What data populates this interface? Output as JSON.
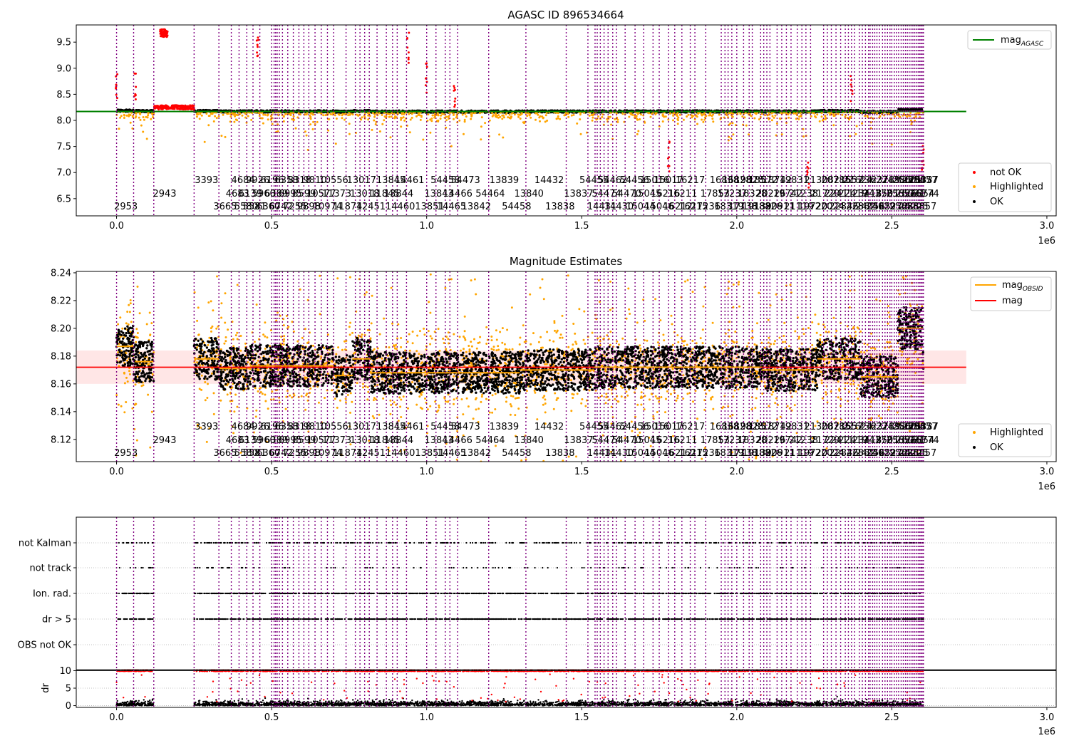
{
  "chart_data": [
    {
      "id": "panel1",
      "type": "scatter",
      "title": "AGASC ID 896534664",
      "xlim": [
        -130000,
        3030000
      ],
      "ylim": [
        6.17,
        9.83
      ],
      "x_offset_label": "1e6",
      "x_ticks": [
        0,
        500000,
        1000000,
        1500000,
        2000000,
        2500000,
        3000000
      ],
      "x_tick_labels": [
        "0.0",
        "0.5",
        "1.0",
        "1.5",
        "2.0",
        "2.5",
        "3.0"
      ],
      "y_ticks": [
        6.5,
        7.0,
        7.5,
        8.0,
        8.5,
        9.0,
        9.5
      ],
      "y_tick_labels": [
        "6.5",
        "7.0",
        "7.5",
        "8.0",
        "8.5",
        "9.0",
        "9.5"
      ],
      "hline": {
        "label_html": "mag<sub>AGASC</sub>",
        "base": "mag",
        "sub": "AGASC",
        "y": 8.17,
        "x_extent": [
          -130000,
          2740000
        ],
        "color": "#008000"
      },
      "legend_top": {
        "position": "top-right",
        "entries": [
          {
            "base": "mag",
            "sub": "AGASC",
            "color": "#008000",
            "kind": "line"
          }
        ]
      },
      "legend_bottom": {
        "position": "bottom-right",
        "entries": [
          {
            "label": "not OK",
            "color": "#ff0000",
            "kind": "dot"
          },
          {
            "label": "Highlighted",
            "color": "#ffa500",
            "kind": "dot"
          },
          {
            "label": "OK",
            "color": "#000000",
            "kind": "dot"
          }
        ]
      }
    },
    {
      "id": "panel2",
      "type": "scatter",
      "title": "Magnitude Estimates",
      "xlim": [
        -130000,
        3030000
      ],
      "ylim": [
        8.104,
        8.241
      ],
      "x_offset_label": "1e6",
      "x_ticks": [
        0,
        500000,
        1000000,
        1500000,
        2000000,
        2500000,
        3000000
      ],
      "x_tick_labels": [
        "0.0",
        "0.5",
        "1.0",
        "1.5",
        "2.0",
        "2.5",
        "3.0"
      ],
      "y_ticks": [
        8.12,
        8.14,
        8.16,
        8.18,
        8.2,
        8.22,
        8.24
      ],
      "y_tick_labels": [
        "8.12",
        "8.14",
        "8.16",
        "8.18",
        "8.20",
        "8.22",
        "8.24"
      ],
      "mag_line": {
        "y": 8.172,
        "band": [
          8.16,
          8.184
        ],
        "color": "#ff0000"
      },
      "legend_top": {
        "position": "top-right",
        "entries": [
          {
            "base": "mag",
            "sub": "OBSID",
            "color": "#ffa500",
            "kind": "line"
          },
          {
            "base": "mag",
            "sub": "",
            "color": "#ff0000",
            "kind": "line"
          }
        ]
      },
      "legend_bottom": {
        "position": "bottom-right",
        "entries": [
          {
            "label": "Highlighted",
            "color": "#ffa500",
            "kind": "dot"
          },
          {
            "label": "OK",
            "color": "#000000",
            "kind": "dot"
          }
        ]
      },
      "obsid_mag_segments": [
        {
          "x0": 0,
          "x1": 55000,
          "y": 8.187
        },
        {
          "x0": 60000,
          "x1": 120000,
          "y": 8.176
        },
        {
          "x0": 250000,
          "x1": 330000,
          "y": 8.178
        },
        {
          "x0": 330000,
          "x1": 430000,
          "y": 8.171
        },
        {
          "x0": 430000,
          "x1": 700000,
          "y": 8.173
        },
        {
          "x0": 700000,
          "x1": 760000,
          "y": 8.166
        },
        {
          "x0": 760000,
          "x1": 820000,
          "y": 8.178
        },
        {
          "x0": 820000,
          "x1": 1300000,
          "y": 8.168
        },
        {
          "x0": 1300000,
          "x1": 1540000,
          "y": 8.17
        },
        {
          "x0": 1540000,
          "x1": 2080000,
          "y": 8.172
        },
        {
          "x0": 2080000,
          "x1": 2260000,
          "y": 8.17
        },
        {
          "x0": 2260000,
          "x1": 2400000,
          "y": 8.178
        },
        {
          "x0": 2400000,
          "x1": 2520000,
          "y": 8.165
        },
        {
          "x0": 2520000,
          "x1": 2600000,
          "y": 8.2
        }
      ]
    },
    {
      "id": "panel3",
      "type": "scatter",
      "title": "",
      "xlim": [
        -130000,
        3030000
      ],
      "x_offset_label": "1e6",
      "x_ticks": [
        0,
        500000,
        1000000,
        1500000,
        2000000,
        2500000,
        3000000
      ],
      "x_tick_labels": [
        "0.0",
        "0.5",
        "1.0",
        "1.5",
        "2.0",
        "2.5",
        "3.0"
      ],
      "flags": [
        "not Kalman",
        "not track",
        "Ion. rad.",
        "dr > 5",
        "OBS not OK"
      ],
      "flag_density": [
        0.35,
        0.1,
        0.95,
        0.95,
        0.0
      ]
    },
    {
      "id": "panel4",
      "type": "scatter",
      "title": "",
      "ylabel": "dr",
      "xlim": [
        -130000,
        3030000
      ],
      "ylim": [
        -0.5,
        10.3
      ],
      "y_ticks": [
        0,
        5,
        10
      ],
      "y_tick_labels": [
        "0",
        "5",
        "10"
      ],
      "hline": {
        "y": 10,
        "color": "#000000"
      }
    }
  ],
  "obsid_boundaries": [
    0,
    55000,
    120000,
    250000,
    330000,
    370000,
    395000,
    420000,
    440000,
    462000,
    500000,
    508000,
    513000,
    518000,
    525000,
    535000,
    552000,
    570000,
    588000,
    604000,
    620000,
    640000,
    660000,
    680000,
    700000,
    740000,
    770000,
    785000,
    800000,
    815000,
    840000,
    870000,
    890000,
    905000,
    935000,
    1000000,
    1030000,
    1060000,
    1075000,
    1100000,
    1200000,
    1320000,
    1450000,
    1520000,
    1543000,
    1550000,
    1560000,
    1572000,
    1585000,
    1600000,
    1612000,
    1640000,
    1672000,
    1700000,
    1730000,
    1750000,
    1780000,
    1800000,
    1823000,
    1850000,
    1865000,
    1900000,
    1950000,
    1962000,
    1972000,
    1984000,
    2000000,
    2022000,
    2040000,
    2050000,
    2077000,
    2087000,
    2097000,
    2107000,
    2130000,
    2145000,
    2160000,
    2175000,
    2195000,
    2210000,
    2223000,
    2238000,
    2280000,
    2292000,
    2305000,
    2320000,
    2335000,
    2350000,
    2360000,
    2370000,
    2380000,
    2395000,
    2405000,
    2415000,
    2425000,
    2430000,
    2438000,
    2445000,
    2452000,
    2460000,
    2470000,
    2478000,
    2486000,
    2494000,
    2500000,
    2508000,
    2515000,
    2522000,
    2530000,
    2537000,
    2544000,
    2550000,
    2556000,
    2562000,
    2568000,
    2574000,
    2580000,
    2585000,
    2590000,
    2594000,
    2598000,
    2602000
  ],
  "obsid_labels": [
    {
      "text": "2953",
      "x": 30000,
      "row": 2
    },
    {
      "text": "2943",
      "x": 155000,
      "row": 1
    },
    {
      "text": "3393",
      "x": 290000,
      "row": 0
    },
    {
      "text": "3665",
      "x": 350000,
      "row": 2
    },
    {
      "text": "4683",
      "x": 390000,
      "row": 1
    },
    {
      "text": "4684",
      "x": 408000,
      "row": 0
    },
    {
      "text": "5580",
      "x": 418000,
      "row": 2
    },
    {
      "text": "6139",
      "x": 432000,
      "row": 1
    },
    {
      "text": "5581",
      "x": 445000,
      "row": 2
    },
    {
      "text": "9926",
      "x": 455000,
      "row": 0
    },
    {
      "text": "5960",
      "x": 475000,
      "row": 1
    },
    {
      "text": "6360",
      "x": 490000,
      "row": 2
    },
    {
      "text": "6196",
      "x": 502000,
      "row": 0
    },
    {
      "text": "6389",
      "x": 515000,
      "row": 1
    },
    {
      "text": "6742",
      "x": 530000,
      "row": 2
    },
    {
      "text": "6358",
      "x": 548000,
      "row": 0
    },
    {
      "text": "6995",
      "x": 560000,
      "row": 1
    },
    {
      "text": "7255",
      "x": 575000,
      "row": 2
    },
    {
      "text": "8318",
      "x": 590000,
      "row": 0
    },
    {
      "text": "8599",
      "x": 605000,
      "row": 1
    },
    {
      "text": "9898",
      "x": 620000,
      "row": 2
    },
    {
      "text": "9810",
      "x": 640000,
      "row": 0
    },
    {
      "text": "10577",
      "x": 660000,
      "row": 1
    },
    {
      "text": "10974",
      "x": 680000,
      "row": 2
    },
    {
      "text": "10556",
      "x": 700000,
      "row": 0
    },
    {
      "text": "11373",
      "x": 710000,
      "row": 1
    },
    {
      "text": "11874",
      "x": 745000,
      "row": 2
    },
    {
      "text": "13017",
      "x": 790000,
      "row": 0
    },
    {
      "text": "13018",
      "x": 800000,
      "row": 1
    },
    {
      "text": "12451",
      "x": 820000,
      "row": 2
    },
    {
      "text": "11845",
      "x": 865000,
      "row": 1
    },
    {
      "text": "13845",
      "x": 885000,
      "row": 0
    },
    {
      "text": "13844",
      "x": 910000,
      "row": 1
    },
    {
      "text": "14460",
      "x": 915000,
      "row": 2
    },
    {
      "text": "14461",
      "x": 945000,
      "row": 0
    },
    {
      "text": "13851",
      "x": 1010000,
      "row": 2
    },
    {
      "text": "13843",
      "x": 1040000,
      "row": 1
    },
    {
      "text": "54458",
      "x": 1060000,
      "row": 0
    },
    {
      "text": "14465",
      "x": 1080000,
      "row": 2
    },
    {
      "text": "14466",
      "x": 1100000,
      "row": 1
    },
    {
      "text": "54473",
      "x": 1125000,
      "row": 0
    },
    {
      "text": "13842",
      "x": 1160000,
      "row": 2
    },
    {
      "text": "54464",
      "x": 1205000,
      "row": 1
    },
    {
      "text": "13839",
      "x": 1250000,
      "row": 0
    },
    {
      "text": "54458",
      "x": 1290000,
      "row": 2
    },
    {
      "text": "13840",
      "x": 1330000,
      "row": 1
    },
    {
      "text": "14432",
      "x": 1395000,
      "row": 0
    },
    {
      "text": "13838",
      "x": 1430000,
      "row": 2
    },
    {
      "text": "13837",
      "x": 1490000,
      "row": 1
    },
    {
      "text": "54455",
      "x": 1540000,
      "row": 0
    },
    {
      "text": "14431",
      "x": 1565000,
      "row": 2
    },
    {
      "text": "54474",
      "x": 1580000,
      "row": 1
    },
    {
      "text": "54462",
      "x": 1600000,
      "row": 0
    },
    {
      "text": "14430",
      "x": 1620000,
      "row": 2
    },
    {
      "text": "54470",
      "x": 1645000,
      "row": 1
    },
    {
      "text": "54456",
      "x": 1670000,
      "row": 0
    },
    {
      "text": "15044",
      "x": 1690000,
      "row": 2
    },
    {
      "text": "15045",
      "x": 1710000,
      "row": 1
    },
    {
      "text": "15016",
      "x": 1735000,
      "row": 0
    },
    {
      "text": "15046",
      "x": 1750000,
      "row": 2
    },
    {
      "text": "16216",
      "x": 1770000,
      "row": 1
    },
    {
      "text": "15017",
      "x": 1780000,
      "row": 0
    },
    {
      "text": "16212",
      "x": 1810000,
      "row": 2
    },
    {
      "text": "16211",
      "x": 1825000,
      "row": 1
    },
    {
      "text": "16217",
      "x": 1850000,
      "row": 0
    },
    {
      "text": "16215",
      "x": 1860000,
      "row": 2
    },
    {
      "text": "17236",
      "x": 1900000,
      "row": 2
    },
    {
      "text": "17853",
      "x": 1930000,
      "row": 1
    },
    {
      "text": "16838",
      "x": 1960000,
      "row": 0
    },
    {
      "text": "18319",
      "x": 1975000,
      "row": 2
    },
    {
      "text": "17237",
      "x": 1985000,
      "row": 1
    },
    {
      "text": "16828",
      "x": 2000000,
      "row": 0
    },
    {
      "text": "17138",
      "x": 2020000,
      "row": 2
    },
    {
      "text": "19828",
      "x": 2040000,
      "row": 0
    },
    {
      "text": "18328",
      "x": 2050000,
      "row": 1
    },
    {
      "text": "19139",
      "x": 2065000,
      "row": 2
    },
    {
      "text": "18572",
      "x": 2085000,
      "row": 0
    },
    {
      "text": "18826",
      "x": 2100000,
      "row": 2
    },
    {
      "text": "20226",
      "x": 2110000,
      "row": 1
    },
    {
      "text": "18742",
      "x": 2130000,
      "row": 0
    },
    {
      "text": "20911",
      "x": 2140000,
      "row": 2
    },
    {
      "text": "19742",
      "x": 2165000,
      "row": 1
    },
    {
      "text": "19831",
      "x": 2185000,
      "row": 0
    },
    {
      "text": "21119",
      "x": 2200000,
      "row": 2
    },
    {
      "text": "21238",
      "x": 2215000,
      "row": 1
    },
    {
      "text": "19720",
      "x": 2245000,
      "row": 2
    },
    {
      "text": "21308",
      "x": 2265000,
      "row": 0
    },
    {
      "text": "21720",
      "x": 2285000,
      "row": 1
    },
    {
      "text": "22024",
      "x": 2300000,
      "row": 2
    },
    {
      "text": "20785",
      "x": 2320000,
      "row": 0
    },
    {
      "text": "22411",
      "x": 2330000,
      "row": 1
    },
    {
      "text": "22846",
      "x": 2345000,
      "row": 2
    },
    {
      "text": "21657",
      "x": 2360000,
      "row": 0
    },
    {
      "text": "22419",
      "x": 2375000,
      "row": 1
    },
    {
      "text": "21624",
      "x": 2390000,
      "row": 0
    },
    {
      "text": "22862",
      "x": 2400000,
      "row": 2
    },
    {
      "text": "23418",
      "x": 2420000,
      "row": 1
    },
    {
      "text": "24056",
      "x": 2430000,
      "row": 2
    },
    {
      "text": "23627",
      "x": 2440000,
      "row": 0
    },
    {
      "text": "24378",
      "x": 2455000,
      "row": 1
    },
    {
      "text": "24629",
      "x": 2465000,
      "row": 2
    },
    {
      "text": "23789",
      "x": 2480000,
      "row": 0
    },
    {
      "text": "25013",
      "x": 2495000,
      "row": 1
    },
    {
      "text": "25272",
      "x": 2505000,
      "row": 2
    },
    {
      "text": "24386",
      "x": 2515000,
      "row": 0
    },
    {
      "text": "25654",
      "x": 2530000,
      "row": 1
    },
    {
      "text": "25683",
      "x": 2540000,
      "row": 2
    },
    {
      "text": "25001",
      "x": 2550000,
      "row": 0
    },
    {
      "text": "26031",
      "x": 2560000,
      "row": 1
    },
    {
      "text": "26225",
      "x": 2570000,
      "row": 2
    },
    {
      "text": "25847",
      "x": 2580000,
      "row": 0
    },
    {
      "text": "26854",
      "x": 2590000,
      "row": 1
    },
    {
      "text": "26857",
      "x": 2597000,
      "row": 2
    },
    {
      "text": "25857",
      "x": 2600000,
      "row": 0
    },
    {
      "text": "26774",
      "x": 2605000,
      "row": 1
    },
    {
      "text": "26337",
      "x": 2603000,
      "row": 0
    }
  ],
  "colors": {
    "not_ok": "#ff0000",
    "highlighted": "#ffa500",
    "ok": "#000000",
    "boundary": "#800080",
    "agasc": "#008000",
    "mag_band": "#ffdddd"
  }
}
